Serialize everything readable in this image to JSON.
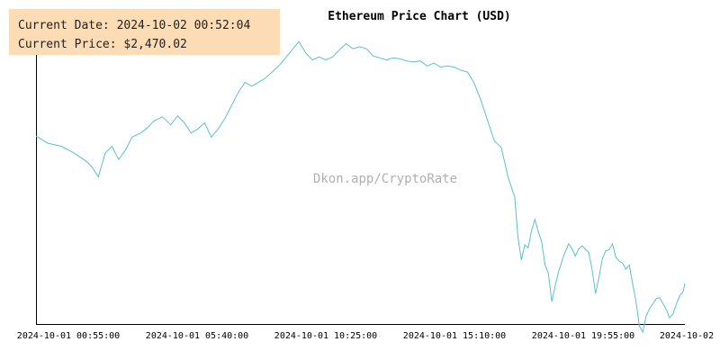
{
  "info": {
    "date_label": "Current Date:",
    "date_value": "2024-10-02 00:52:04",
    "price_label": "Current Price:",
    "price_value": "$2,470.02"
  },
  "watermark": "Dkon.app/CryptoRate",
  "colors": {
    "line": "#5bc0cf",
    "axis": "#000000",
    "watermark": "#b0b0b0",
    "info_bg": "#fbdcb4"
  },
  "chart_data": {
    "type": "line",
    "title": "Ethereum Price Chart (USD)",
    "xlabel": "",
    "ylabel": "",
    "grid": false,
    "x_ticks": [
      "2024-10-01 00:55:00",
      "2024-10-01 05:40:00",
      "2024-10-01 10:25:00",
      "2024-10-01 15:10:00",
      "2024-10-01 19:55:00",
      "2024-10-02"
    ],
    "series": [
      {
        "values": [
          [
            0,
            2615
          ],
          [
            7,
            2608
          ],
          [
            15,
            2605
          ],
          [
            22,
            2599
          ],
          [
            30,
            2590
          ],
          [
            33,
            2585
          ],
          [
            37,
            2575
          ],
          [
            41,
            2598
          ],
          [
            45,
            2605
          ],
          [
            49,
            2592
          ],
          [
            53,
            2601
          ],
          [
            57,
            2614
          ],
          [
            62,
            2618
          ],
          [
            66,
            2623
          ],
          [
            70,
            2630
          ],
          [
            75,
            2634
          ],
          [
            80,
            2626
          ],
          [
            84,
            2635
          ],
          [
            88,
            2628
          ],
          [
            92,
            2618
          ],
          [
            96,
            2622
          ],
          [
            100,
            2628
          ],
          [
            104,
            2614
          ],
          [
            108,
            2622
          ],
          [
            112,
            2632
          ],
          [
            116,
            2645
          ],
          [
            120,
            2658
          ],
          [
            124,
            2668
          ],
          [
            128,
            2664
          ],
          [
            132,
            2668
          ],
          [
            136,
            2672
          ],
          [
            140,
            2678
          ],
          [
            144,
            2684
          ],
          [
            148,
            2692
          ],
          [
            152,
            2700
          ],
          [
            156,
            2708
          ],
          [
            160,
            2697
          ],
          [
            164,
            2690
          ],
          [
            168,
            2693
          ],
          [
            172,
            2690
          ],
          [
            176,
            2693
          ],
          [
            180,
            2700
          ],
          [
            184,
            2706
          ],
          [
            188,
            2701
          ],
          [
            192,
            2703
          ],
          [
            196,
            2701
          ],
          [
            200,
            2694
          ],
          [
            204,
            2692
          ],
          [
            208,
            2690
          ],
          [
            212,
            2692
          ],
          [
            216,
            2691
          ],
          [
            220,
            2689
          ],
          [
            224,
            2688
          ],
          [
            228,
            2689
          ],
          [
            232,
            2684
          ],
          [
            236,
            2687
          ],
          [
            240,
            2683
          ],
          [
            244,
            2684
          ],
          [
            248,
            2683
          ],
          [
            252,
            2680
          ],
          [
            256,
            2678
          ],
          [
            260,
            2667
          ],
          [
            264,
            2650
          ],
          [
            268,
            2630
          ],
          [
            272,
            2610
          ],
          [
            276,
            2604
          ],
          [
            280,
            2575
          ],
          [
            284,
            2555
          ],
          [
            286,
            2515
          ],
          [
            288,
            2493
          ],
          [
            290,
            2508
          ],
          [
            292,
            2505
          ],
          [
            294,
            2522
          ],
          [
            296,
            2533
          ],
          [
            298,
            2521
          ],
          [
            300,
            2511
          ],
          [
            302,
            2488
          ],
          [
            304,
            2480
          ],
          [
            306,
            2452
          ],
          [
            308,
            2467
          ],
          [
            310,
            2481
          ],
          [
            313,
            2497
          ],
          [
            316,
            2509
          ],
          [
            318,
            2504
          ],
          [
            320,
            2497
          ],
          [
            322,
            2504
          ],
          [
            324,
            2507
          ],
          [
            328,
            2500
          ],
          [
            330,
            2483
          ],
          [
            332,
            2460
          ],
          [
            334,
            2476
          ],
          [
            336,
            2494
          ],
          [
            338,
            2502
          ],
          [
            340,
            2503
          ],
          [
            342,
            2509
          ],
          [
            344,
            2496
          ],
          [
            346,
            2492
          ],
          [
            348,
            2490
          ],
          [
            350,
            2484
          ],
          [
            352,
            2488
          ],
          [
            354,
            2470
          ],
          [
            356,
            2452
          ],
          [
            358,
            2428
          ],
          [
            360,
            2422
          ],
          [
            362,
            2438
          ],
          [
            364,
            2445
          ],
          [
            366,
            2450
          ],
          [
            368,
            2455
          ],
          [
            370,
            2456
          ],
          [
            372,
            2450
          ],
          [
            374,
            2444
          ],
          [
            376,
            2436
          ],
          [
            378,
            2440
          ],
          [
            380,
            2450
          ],
          [
            382,
            2458
          ],
          [
            384,
            2462
          ],
          [
            385,
            2470
          ]
        ]
      }
    ]
  }
}
